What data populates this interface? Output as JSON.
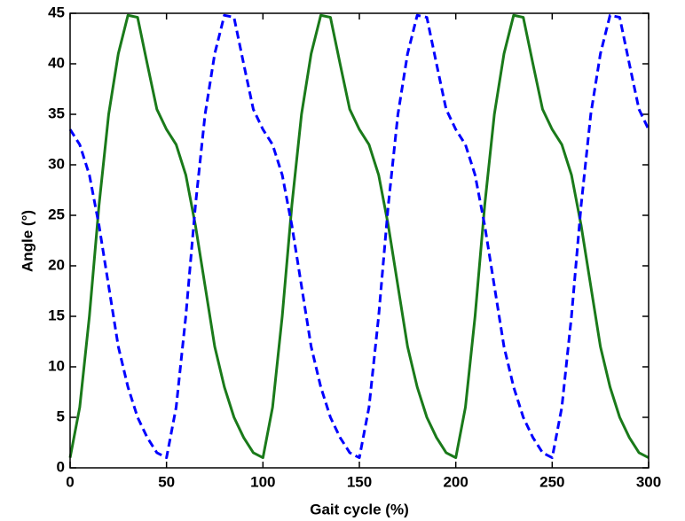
{
  "chart_data": {
    "type": "line",
    "xlabel": "Gait cycle (%)",
    "ylabel": "Angle (°)",
    "x": [
      0,
      5,
      10,
      15,
      20,
      25,
      30,
      35,
      40,
      45,
      50,
      55,
      60,
      65,
      70,
      75,
      80,
      85,
      90,
      95,
      100,
      105,
      110,
      115,
      120,
      125,
      130,
      135,
      140,
      145,
      150,
      155,
      160,
      165,
      170,
      175,
      180,
      185,
      190,
      195,
      200,
      205,
      210,
      215,
      220,
      225,
      230,
      235,
      240,
      245,
      250,
      255,
      260,
      265,
      270,
      275,
      280,
      285,
      290,
      295,
      300
    ],
    "series": [
      {
        "color": "#1a7a1a",
        "style": "solid",
        "values": [
          1,
          6,
          15,
          26,
          35,
          41,
          44.8,
          44.6,
          40,
          35.5,
          33.5,
          32,
          29,
          24,
          18,
          12,
          8,
          5,
          3,
          1.5,
          1,
          6,
          15,
          26,
          35,
          41,
          44.8,
          44.6,
          40,
          35.5,
          33.5,
          32,
          29,
          24,
          18,
          12,
          8,
          5,
          3,
          1.5,
          1,
          6,
          15,
          26,
          35,
          41,
          44.8,
          44.6,
          40,
          35.5,
          33.5,
          32,
          29,
          24,
          18,
          12,
          8,
          5,
          3,
          1.5,
          1
        ]
      },
      {
        "color": "#0000ff",
        "style": "dashed",
        "values": [
          33.5,
          32,
          29,
          24,
          18,
          12,
          8,
          5,
          3,
          1.5,
          1,
          6,
          15,
          26,
          35,
          41,
          44.8,
          44.6,
          40,
          35.5,
          33.5,
          32,
          29,
          24,
          18,
          12,
          8,
          5,
          3,
          1.5,
          1,
          6,
          15,
          26,
          35,
          41,
          44.8,
          44.6,
          40,
          35.5,
          33.5,
          32,
          29,
          24,
          18,
          12,
          8,
          5,
          3,
          1.5,
          1,
          6,
          15,
          26,
          35,
          41,
          44.8,
          44.6,
          40,
          35.5,
          33.5
        ]
      }
    ],
    "xlim": [
      0,
      300
    ],
    "xticks": [
      0,
      50,
      100,
      150,
      200,
      250,
      300
    ],
    "ylim": [
      0,
      45
    ],
    "yticks": [
      0,
      5,
      10,
      15,
      20,
      25,
      30,
      35,
      40,
      45
    ]
  }
}
